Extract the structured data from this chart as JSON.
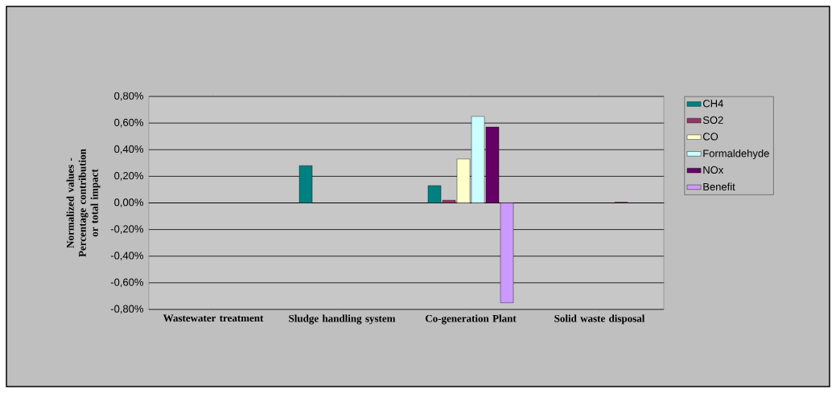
{
  "chart_data": {
    "type": "bar",
    "ylabel": "Normalized values - Percentage contribution or total impact",
    "categories": [
      "Wastewater treatment",
      "Sludge handling system",
      "Co-generation Plant",
      "Solid waste disposal"
    ],
    "series": [
      {
        "name": "CH4",
        "color": "#008080",
        "values": [
          null,
          0.28,
          0.13,
          null
        ]
      },
      {
        "name": "SO2",
        "color": "#993366",
        "values": [
          null,
          null,
          0.02,
          null
        ]
      },
      {
        "name": "CO",
        "color": "#ffffcc",
        "values": [
          null,
          null,
          0.33,
          null
        ]
      },
      {
        "name": "Formaldehyde",
        "color": "#ccffff",
        "values": [
          null,
          null,
          0.65,
          null
        ]
      },
      {
        "name": "NOx",
        "color": "#660066",
        "values": [
          null,
          null,
          0.57,
          0.005
        ]
      },
      {
        "name": "Benefit",
        "color": "#cc99ff",
        "values": [
          null,
          null,
          -0.75,
          null
        ]
      }
    ],
    "ylim": [
      -0.8,
      0.8
    ],
    "yticks": [
      {
        "value": -0.8,
        "label": "-0,80%"
      },
      {
        "value": -0.6,
        "label": "-0,60%"
      },
      {
        "value": -0.4,
        "label": "-0,40%"
      },
      {
        "value": -0.2,
        "label": "-0,20%"
      },
      {
        "value": 0,
        "label": "0,00%"
      },
      {
        "value": 0.2,
        "label": "0,20%"
      },
      {
        "value": 0.4,
        "label": "0,40%"
      },
      {
        "value": 0.6,
        "label": "0,60%"
      },
      {
        "value": 0.8,
        "label": "0,80%"
      }
    ],
    "grid": "y",
    "legend": "right"
  }
}
